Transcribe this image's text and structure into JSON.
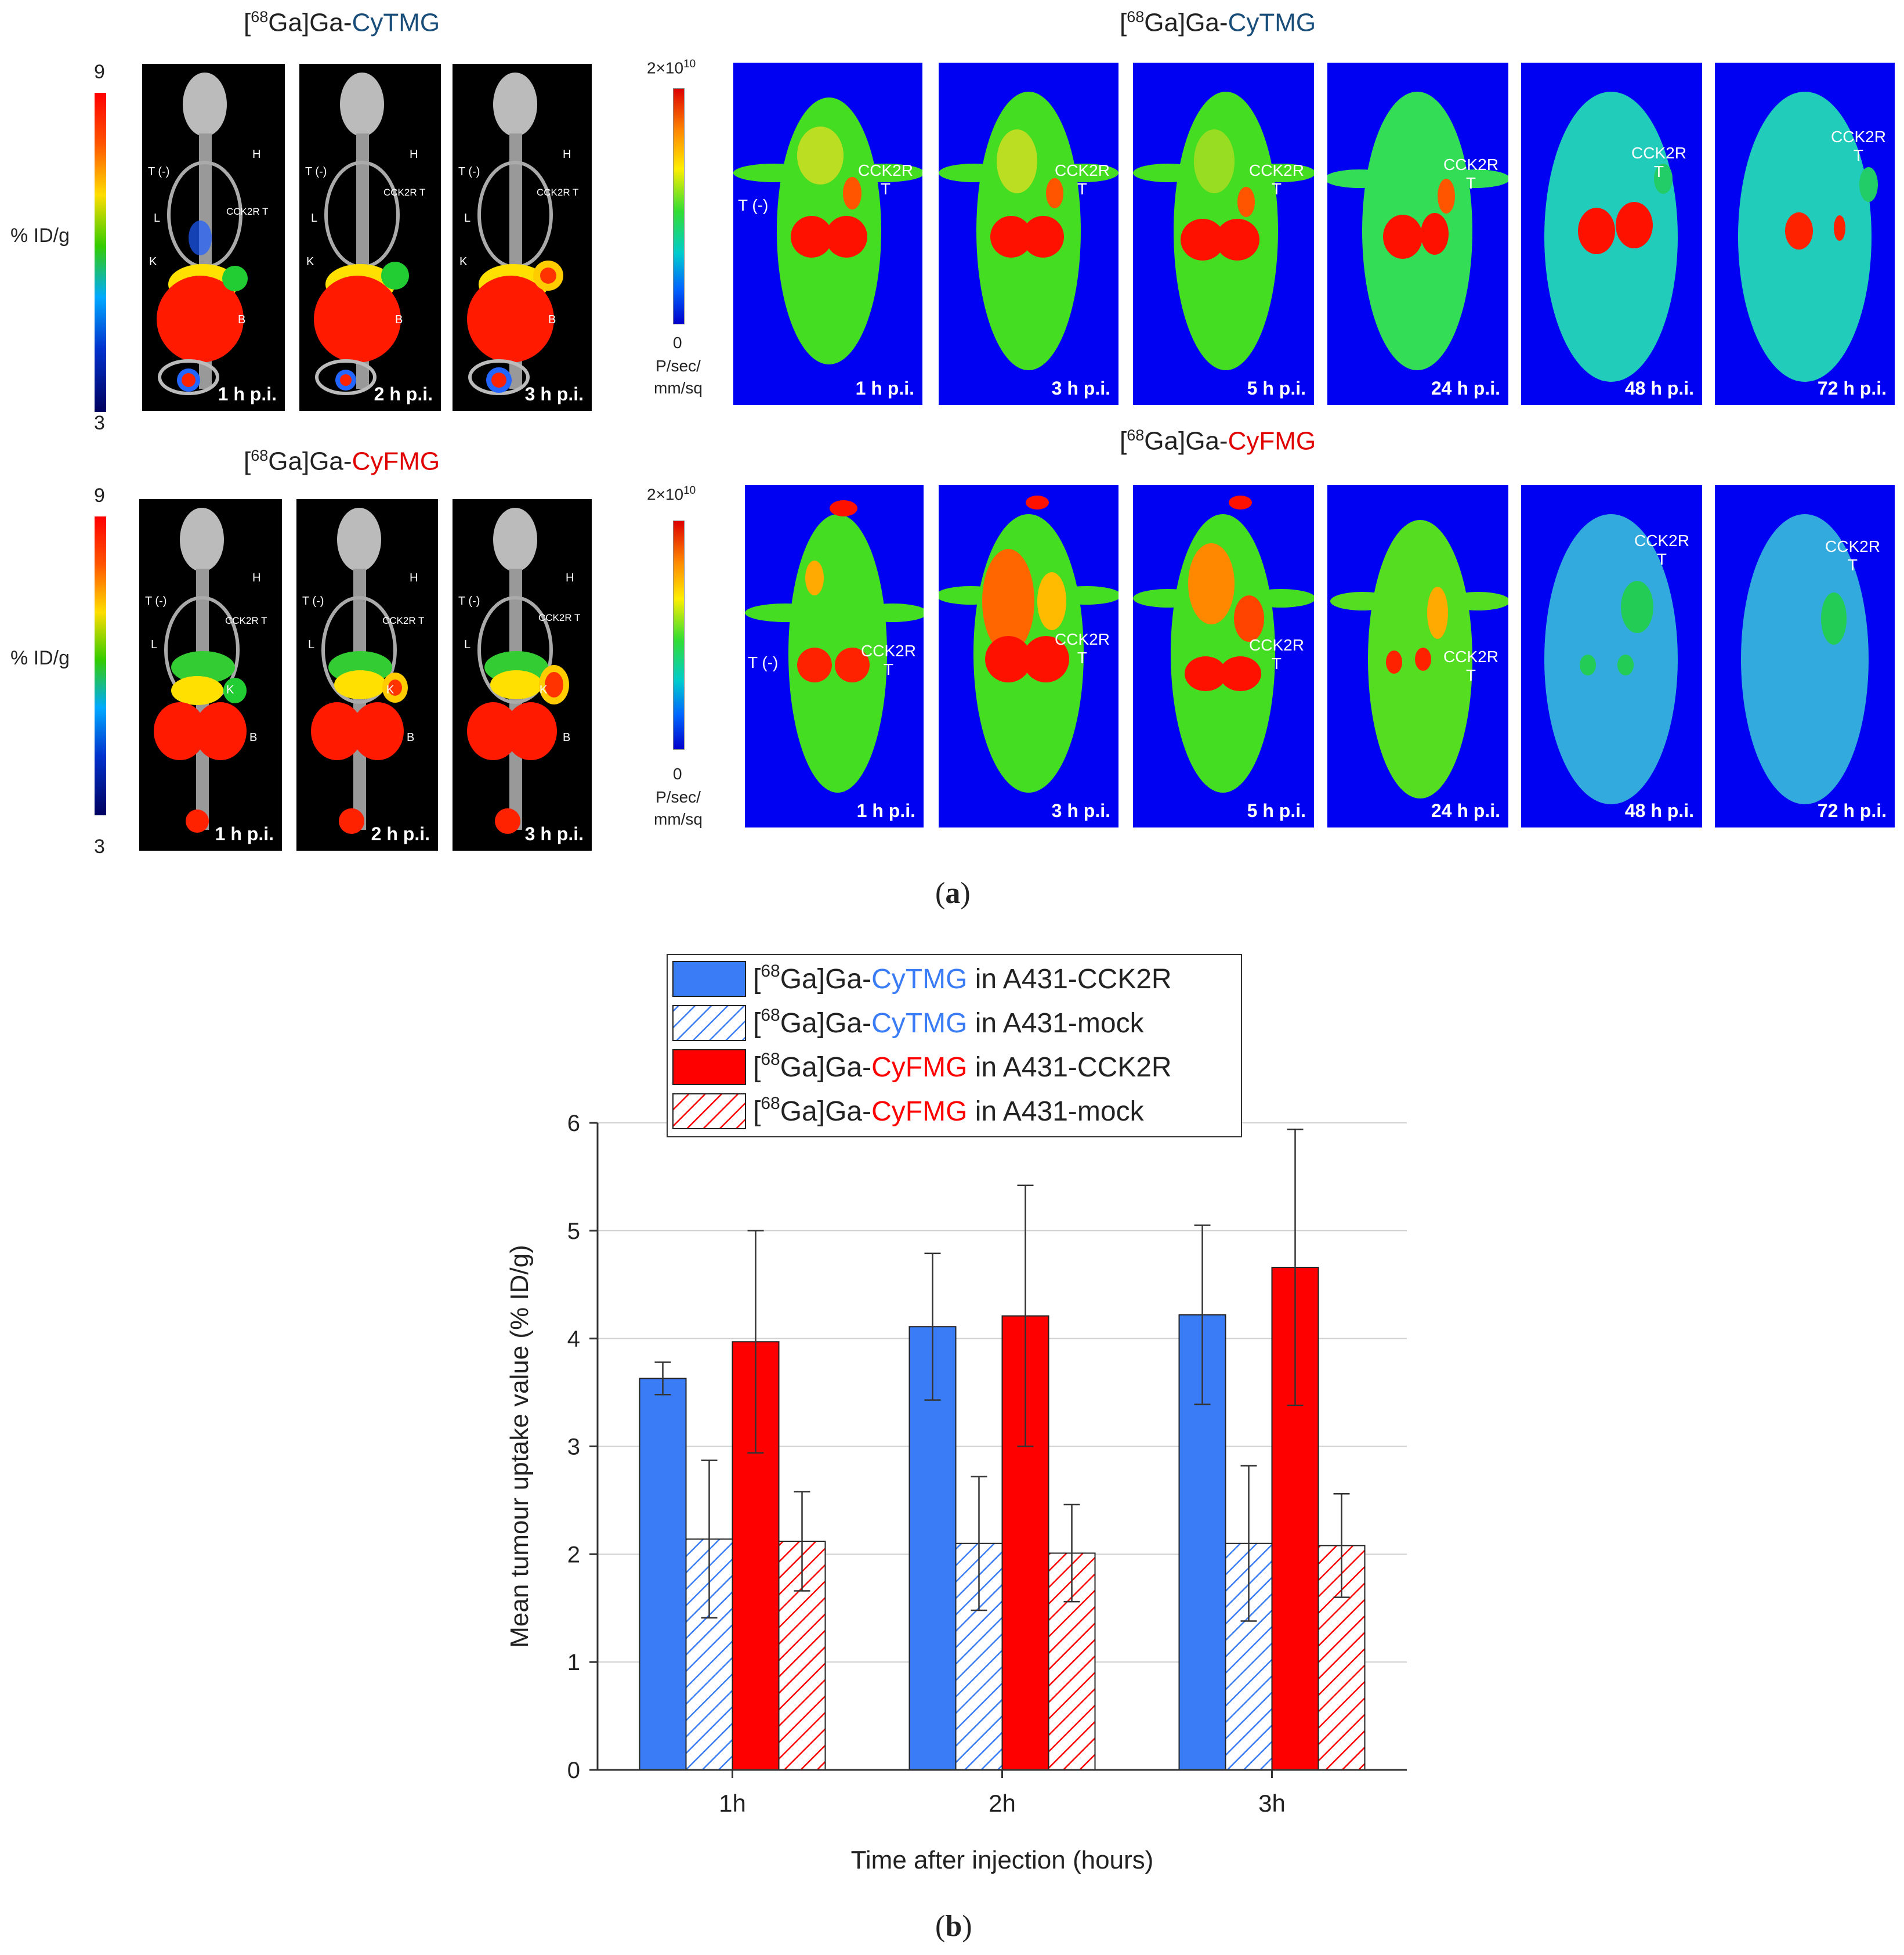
{
  "panel_a": {
    "pet_title_1": {
      "prefix": "[",
      "sup": "68",
      "middle": "Ga]Ga-",
      "agent": "CyTMG"
    },
    "pet_title_2": {
      "prefix": "[",
      "sup": "68",
      "middle": "Ga]Ga-",
      "agent": "CyFMG"
    },
    "opt_title_1": {
      "prefix": "[",
      "sup": "68",
      "middle": "Ga]Ga-",
      "agent": "CyTMG"
    },
    "opt_title_2": {
      "prefix": "[",
      "sup": "68",
      "middle": "Ga]Ga-",
      "agent": "CyFMG"
    },
    "pet_scale": {
      "max": "9",
      "min": "3",
      "unit": "% ID/g"
    },
    "opt_scale": {
      "max_base": "2×10",
      "max_exp": "10",
      "min": "0",
      "unit_line1": "P/sec/",
      "unit_line2": "mm/sq"
    },
    "pet_timepoints": [
      "1 h p.i.",
      "2 h p.i.",
      "3 h p.i."
    ],
    "opt_timepoints": [
      "1 h p.i.",
      "3 h p.i.",
      "5 h p.i.",
      "24 h p.i.",
      "48 h p.i.",
      "72 h p.i."
    ],
    "organ_labels": {
      "heart": "H",
      "tumor_neg": "T (-)",
      "tumor_pos": "CCK2R T",
      "liver": "L",
      "kidney": "K",
      "bladder": "B"
    },
    "opt_labels": {
      "tumor_neg": "T (-)",
      "receptor": "CCK2R",
      "tumor": "T"
    },
    "caption": {
      "open": "(",
      "letter": "a",
      "close": ")"
    }
  },
  "panel_b": {
    "caption": {
      "open": "(",
      "letter": "b",
      "close": ")"
    }
  },
  "colors": {
    "blue": "#3a7cf5",
    "red": "#ff0000",
    "tmg_title": "#1a4e7a",
    "opt_bg": "#0000f2"
  },
  "chart_data": {
    "type": "bar",
    "xlabel": "Time after injection (hours)",
    "ylabel": "Mean tumour uptake value (% ID/g)",
    "ylim": [
      0,
      6
    ],
    "yticks": [
      "0",
      "1",
      "2",
      "3",
      "4",
      "5",
      "6"
    ],
    "categories": [
      "1h",
      "2h",
      "3h"
    ],
    "grid": "horizontal",
    "legend_position": "top",
    "series": [
      {
        "name_prefix": "[",
        "name_sup": "68",
        "name_mid": "Ga]Ga-",
        "name_agent": "CyTMG",
        "name_suffix": " in A431-CCK2R",
        "agent_color": "#3a7cf5",
        "color": "#3a7cf5",
        "hatched": false,
        "values": [
          3.63,
          4.11,
          4.22
        ],
        "errors": [
          0.15,
          0.68,
          0.83
        ]
      },
      {
        "name_prefix": "[",
        "name_sup": "68",
        "name_mid": "Ga]Ga-",
        "name_agent": "CyTMG",
        "name_suffix": " in A431-mock",
        "agent_color": "#3a7cf5",
        "color": "#3a7cf5",
        "hatched": true,
        "values": [
          2.14,
          2.1,
          2.1
        ],
        "errors": [
          0.73,
          0.62,
          0.72
        ]
      },
      {
        "name_prefix": "[",
        "name_sup": "68",
        "name_mid": "Ga]Ga-",
        "name_agent": "CyFMG",
        "name_suffix": " in A431-CCK2R",
        "agent_color": "#ff0000",
        "color": "#ff0000",
        "hatched": false,
        "values": [
          3.97,
          4.21,
          4.66
        ],
        "errors": [
          1.03,
          1.21,
          1.28
        ]
      },
      {
        "name_prefix": "[",
        "name_sup": "68",
        "name_mid": "Ga]Ga-",
        "name_agent": "CyFMG",
        "name_suffix": " in A431-mock",
        "agent_color": "#ff0000",
        "color": "#ff0000",
        "hatched": true,
        "values": [
          2.12,
          2.01,
          2.08
        ],
        "errors": [
          0.46,
          0.45,
          0.48
        ]
      }
    ]
  }
}
